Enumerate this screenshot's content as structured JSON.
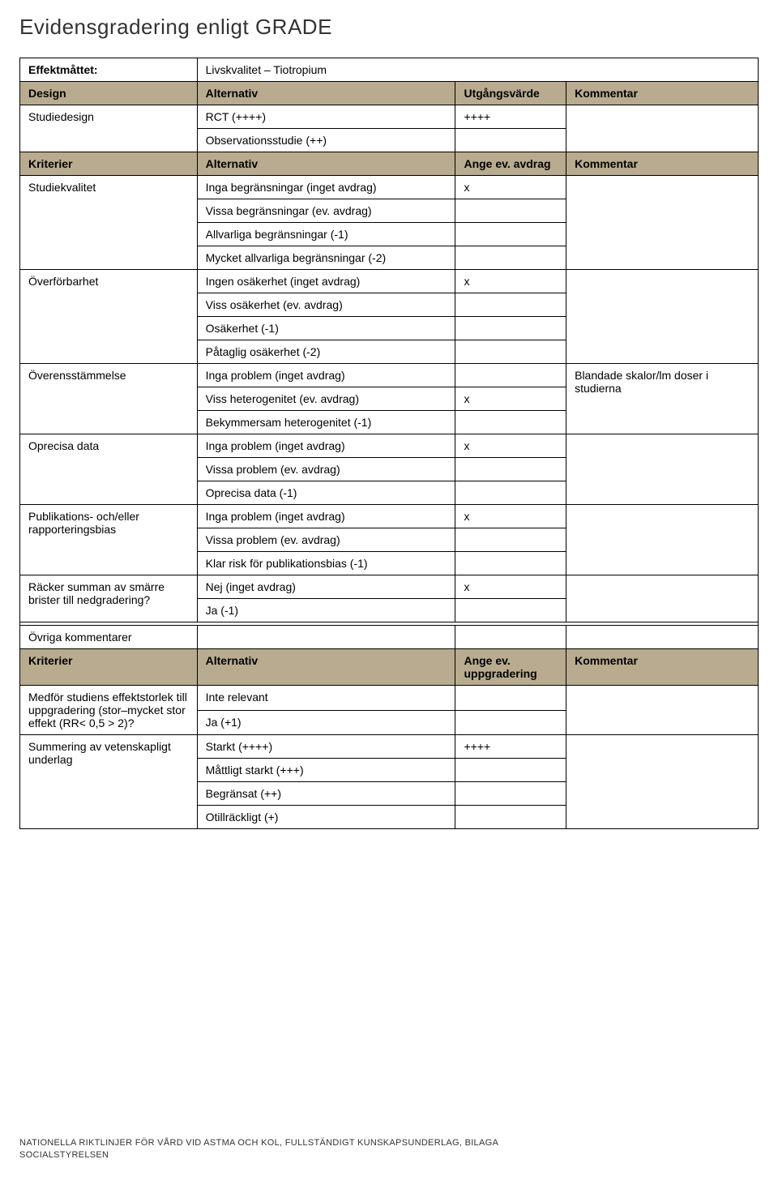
{
  "title": "Evidensgradering enligt GRADE",
  "colors": {
    "header_bg": "#b8ab8f",
    "border": "#000000",
    "background": "#ffffff",
    "text": "#000000"
  },
  "effektmatt": {
    "label": "Effektmåttet:",
    "value": "Livskvalitet – Tiotropium"
  },
  "design_header": {
    "c1": "Design",
    "c2": "Alternativ",
    "c3": "Utgångsvärde",
    "c4": "Kommentar"
  },
  "studiedesign": {
    "label": "Studiedesign",
    "r1": {
      "alt": "RCT (++++)",
      "val": "++++"
    },
    "r2": {
      "alt": "Observationsstudie (++)"
    }
  },
  "kriterier_header": {
    "c1": "Kriterier",
    "c2": "Alternativ",
    "c3": "Ange ev. avdrag",
    "c4": "Kommentar"
  },
  "studiekvalitet": {
    "label": "Studiekvalitet",
    "rows": [
      {
        "alt": "Inga begränsningar (inget avdrag)",
        "val": "x"
      },
      {
        "alt": "Vissa begränsningar (ev. avdrag)"
      },
      {
        "alt": "Allvarliga begränsningar (-1)"
      },
      {
        "alt": "Mycket allvarliga begränsningar (-2)"
      }
    ]
  },
  "overforbarhet": {
    "label": "Överförbarhet",
    "rows": [
      {
        "alt": "Ingen osäkerhet (inget avdrag)",
        "val": "x"
      },
      {
        "alt": "Viss osäkerhet (ev. avdrag)"
      },
      {
        "alt": "Osäkerhet (-1)"
      },
      {
        "alt": "Påtaglig osäkerhet (-2)"
      }
    ]
  },
  "overensstammelse": {
    "label": "Överensstämmelse",
    "comment": "Blandade skalor/lm doser i studierna",
    "rows": [
      {
        "alt": "Inga problem (inget avdrag)"
      },
      {
        "alt": "Viss heterogenitet (ev. avdrag)",
        "val": "x"
      },
      {
        "alt": "Bekymmersam heterogenitet (-1)"
      }
    ]
  },
  "oprecisa": {
    "label": "Oprecisa data",
    "rows": [
      {
        "alt": "Inga problem (inget avdrag)",
        "val": "x"
      },
      {
        "alt": "Vissa problem (ev. avdrag)"
      },
      {
        "alt": "Oprecisa data (-1)"
      }
    ]
  },
  "publikations": {
    "label": "Publikations- och/eller rapporteringsbias",
    "rows": [
      {
        "alt": "Inga problem (inget avdrag)",
        "val": "x"
      },
      {
        "alt": "Vissa problem (ev. avdrag)"
      },
      {
        "alt": "Klar risk för publikationsbias (-1)"
      }
    ]
  },
  "racker": {
    "label": "Räcker summan av smärre brister till nedgradering?",
    "rows": [
      {
        "alt": "Nej (inget avdrag)",
        "val": "x"
      },
      {
        "alt": "Ja (-1)"
      }
    ]
  },
  "ovriga": {
    "label": "Övriga kommentarer"
  },
  "kriterier2_header": {
    "c1": "Kriterier",
    "c2": "Alternativ",
    "c3": "Ange ev. uppgradering",
    "c4": "Kommentar"
  },
  "medfor": {
    "label": "Medför studiens effektstorlek till uppgradering (stor–mycket stor effekt (RR< 0,5 > 2)?",
    "rows": [
      {
        "alt": "Inte relevant"
      },
      {
        "alt": "Ja (+1)"
      }
    ]
  },
  "summering": {
    "label": "Summering av vetenskapligt underlag",
    "rows": [
      {
        "alt": "Starkt (++++)",
        "val": "++++"
      },
      {
        "alt": "Måttligt starkt (+++)"
      },
      {
        "alt": "Begränsat (++)"
      },
      {
        "alt": "Otillräckligt (+)"
      }
    ]
  },
  "footer": {
    "line1": "NATIONELLA RIKTLINJER FÖR VÅRD VID ASTMA OCH KOL, FULLSTÄNDIGT KUNSKAPSUNDERLAG, BILAGA",
    "line2": "SOCIALSTYRELSEN"
  }
}
